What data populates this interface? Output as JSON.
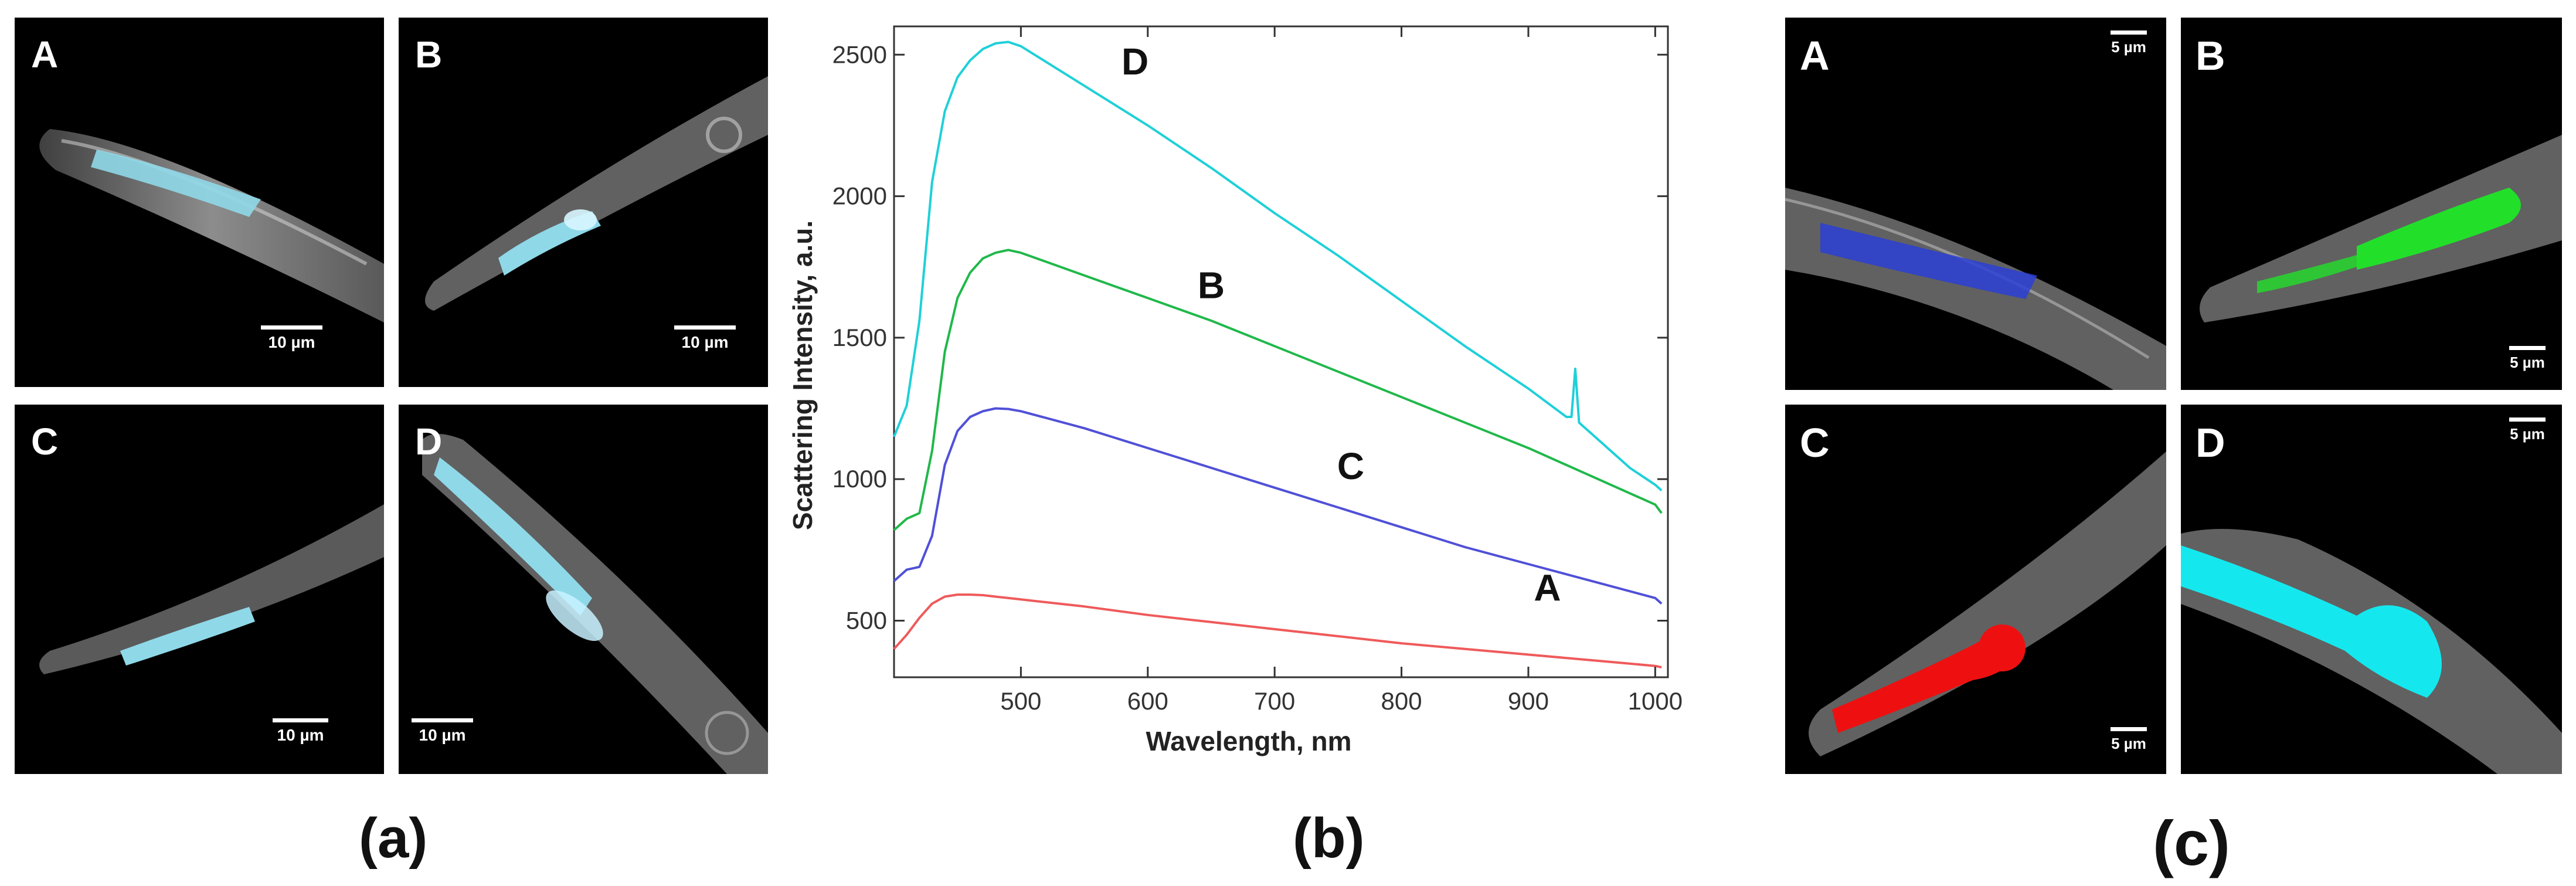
{
  "captions": {
    "a": "(a)",
    "b": "(b)",
    "c": "(c)"
  },
  "panel_a": {
    "tiles": [
      {
        "label": "A",
        "scale": "10 µm"
      },
      {
        "label": "B",
        "scale": "10 µm"
      },
      {
        "label": "C",
        "scale": "10 µm"
      },
      {
        "label": "D",
        "scale": "10 µm"
      }
    ],
    "stain_color": "#8fd8e8"
  },
  "panel_c": {
    "tiles": [
      {
        "label": "A",
        "scale": "5 µm",
        "color": "#2b3fd6"
      },
      {
        "label": "B",
        "scale": "5 µm",
        "color": "#22e02a"
      },
      {
        "label": "C",
        "scale": "5 µm",
        "color": "#ee1010"
      },
      {
        "label": "D",
        "scale": "5 µm",
        "color": "#14e8ee"
      }
    ]
  },
  "chart_data": {
    "type": "line",
    "title": "",
    "xlabel": "Wavelength, nm",
    "ylabel": "Scattering Intensity, a.u.",
    "xlim": [
      400,
      1010
    ],
    "ylim": [
      300,
      2600
    ],
    "xticks": [
      500,
      600,
      700,
      800,
      900,
      1000
    ],
    "yticks": [
      500,
      1000,
      1500,
      2000,
      2500
    ],
    "grid": false,
    "series": [
      {
        "name": "D",
        "color": "#1fd0d8",
        "x": [
          400,
          410,
          420,
          430,
          440,
          450,
          460,
          470,
          480,
          490,
          500,
          550,
          600,
          650,
          700,
          750,
          800,
          850,
          900,
          930,
          934,
          937,
          940,
          960,
          980,
          1000,
          1005
        ],
        "y": [
          1150,
          1260,
          1560,
          2050,
          2300,
          2420,
          2480,
          2520,
          2540,
          2545,
          2530,
          2390,
          2250,
          2100,
          1940,
          1790,
          1630,
          1470,
          1320,
          1220,
          1220,
          1390,
          1200,
          1120,
          1040,
          980,
          960
        ]
      },
      {
        "name": "B",
        "color": "#20b84a",
        "x": [
          400,
          410,
          420,
          430,
          440,
          450,
          460,
          470,
          480,
          490,
          500,
          550,
          600,
          650,
          700,
          750,
          800,
          850,
          900,
          950,
          1000,
          1005
        ],
        "y": [
          820,
          860,
          880,
          1100,
          1450,
          1640,
          1730,
          1780,
          1800,
          1810,
          1800,
          1720,
          1640,
          1560,
          1470,
          1380,
          1290,
          1200,
          1110,
          1010,
          910,
          880
        ]
      },
      {
        "name": "C",
        "color": "#5050d8",
        "x": [
          400,
          410,
          420,
          430,
          440,
          450,
          460,
          470,
          480,
          490,
          500,
          550,
          600,
          650,
          700,
          750,
          800,
          850,
          900,
          950,
          1000,
          1005
        ],
        "y": [
          640,
          680,
          690,
          800,
          1050,
          1170,
          1220,
          1240,
          1250,
          1248,
          1240,
          1180,
          1110,
          1040,
          970,
          900,
          830,
          760,
          700,
          640,
          580,
          560
        ]
      },
      {
        "name": "A",
        "color": "#ef5a5a",
        "x": [
          400,
          410,
          420,
          430,
          440,
          450,
          460,
          470,
          480,
          490,
          500,
          550,
          600,
          650,
          700,
          750,
          800,
          850,
          900,
          950,
          1000,
          1005
        ],
        "y": [
          400,
          450,
          510,
          560,
          585,
          592,
          592,
          590,
          585,
          580,
          575,
          550,
          520,
          495,
          470,
          445,
          420,
          400,
          380,
          360,
          340,
          335
        ]
      }
    ],
    "annotations": [
      {
        "text": "D",
        "x": 590,
        "y": 2430
      },
      {
        "text": "B",
        "x": 650,
        "y": 1640
      },
      {
        "text": "C",
        "x": 760,
        "y": 1000
      },
      {
        "text": "A",
        "x": 915,
        "y": 570
      }
    ]
  }
}
